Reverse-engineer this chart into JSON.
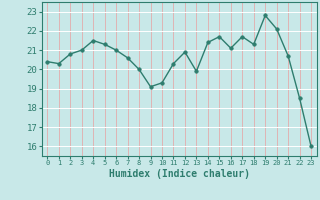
{
  "x": [
    0,
    1,
    2,
    3,
    4,
    5,
    6,
    7,
    8,
    9,
    10,
    11,
    12,
    13,
    14,
    15,
    16,
    17,
    18,
    19,
    20,
    21,
    22,
    23
  ],
  "y": [
    20.4,
    20.3,
    20.8,
    21.0,
    21.5,
    21.3,
    21.0,
    20.6,
    20.0,
    19.1,
    19.3,
    20.3,
    20.9,
    19.9,
    21.4,
    21.7,
    21.1,
    21.7,
    21.3,
    22.8,
    22.1,
    20.7,
    18.5,
    16.0
  ],
  "line_color": "#2e7d6e",
  "marker_color": "#2e7d6e",
  "bg_color": "#c8e8e8",
  "grid_color": "#f0f0f0",
  "grid_color_v": "#f5b8b8",
  "tick_label_color": "#2e7d6e",
  "xlabel": "Humidex (Indice chaleur)",
  "xlim": [
    -0.5,
    23.5
  ],
  "ylim": [
    15.5,
    23.5
  ],
  "yticks": [
    16,
    17,
    18,
    19,
    20,
    21,
    22,
    23
  ],
  "xticks": [
    0,
    1,
    2,
    3,
    4,
    5,
    6,
    7,
    8,
    9,
    10,
    11,
    12,
    13,
    14,
    15,
    16,
    17,
    18,
    19,
    20,
    21,
    22,
    23
  ]
}
